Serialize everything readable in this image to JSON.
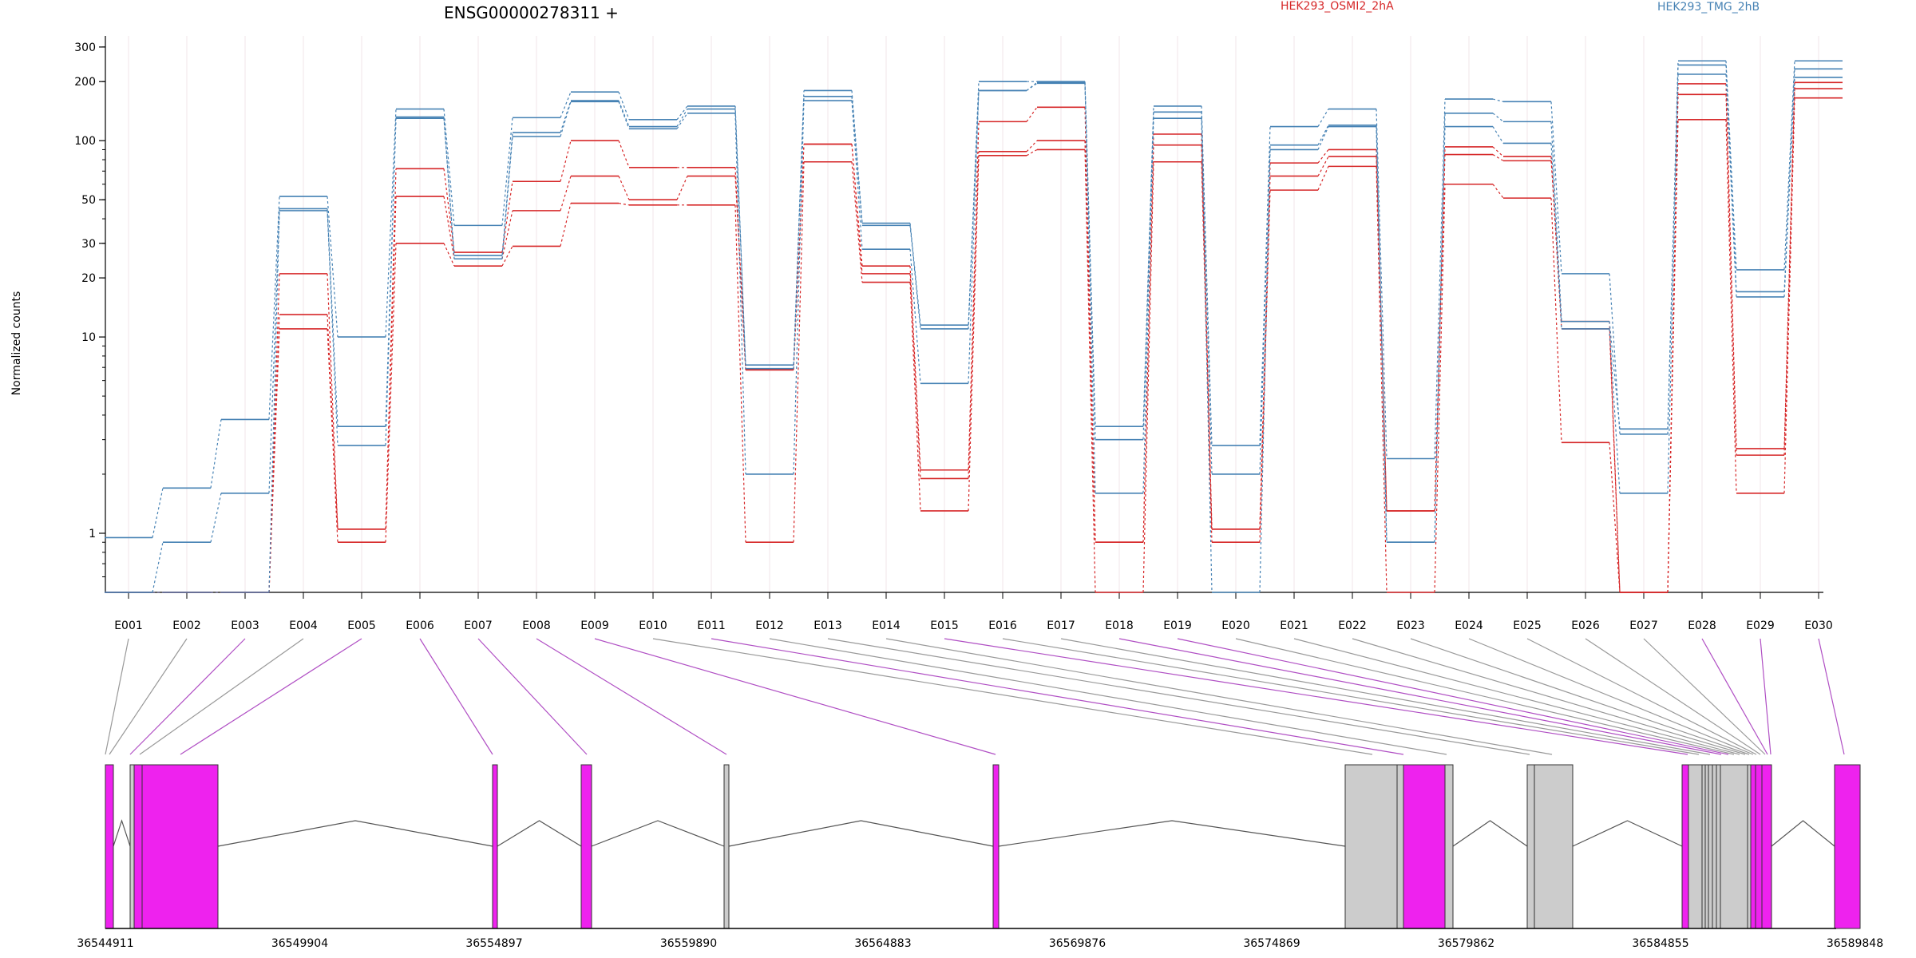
{
  "chart_data": {
    "type": "line",
    "title": "ENSG00000278311 +",
    "ylabel": "Normalized counts",
    "yscale": "log",
    "ylim": [
      0.5,
      320
    ],
    "yticks": [
      {
        "value": 1,
        "label": "1"
      },
      {
        "value": 10,
        "label": "10"
      },
      {
        "value": 20,
        "label": "20"
      },
      {
        "value": 30,
        "label": "30"
      },
      {
        "value": 50,
        "label": "50"
      },
      {
        "value": 100,
        "label": "100"
      },
      {
        "value": 200,
        "label": "200"
      },
      {
        "value": 300,
        "label": "300"
      }
    ],
    "categories": [
      "E001",
      "E002",
      "E003",
      "E004",
      "E005",
      "E006",
      "E007",
      "E008",
      "E009",
      "E010",
      "E011",
      "E012",
      "E013",
      "E014",
      "E015",
      "E016",
      "E017",
      "E018",
      "E019",
      "E020",
      "E021",
      "E022",
      "E023",
      "E024",
      "E025",
      "E026",
      "E027",
      "E028",
      "E029",
      "E030"
    ],
    "series": [
      {
        "name": "HEK293_OSMI2_2hA",
        "color": "#d62728",
        "values": [
          0.5,
          0.5,
          0.5,
          21,
          1.05,
          72,
          27,
          62,
          100,
          73,
          73,
          6.8,
          96,
          23,
          2.1,
          125,
          148,
          0.9,
          108,
          1.05,
          77,
          90,
          1.3,
          93,
          83,
          11,
          0.5,
          195,
          2.7,
          198
        ]
      },
      {
        "name": "HEK293_OSMI2_2hA",
        "color": "#d62728",
        "values": [
          0.5,
          0.5,
          0.5,
          13,
          1.05,
          52,
          25,
          44,
          66,
          50,
          66,
          6.8,
          96,
          21,
          1.9,
          88,
          100,
          0.9,
          95,
          1.05,
          66,
          83,
          1.3,
          85,
          79,
          12,
          0.5,
          172,
          2.5,
          184
        ]
      },
      {
        "name": "HEK293_OSMI2_2hA",
        "color": "#d62728",
        "values": [
          0.5,
          0.5,
          0.5,
          11,
          0.9,
          30,
          23,
          29,
          48,
          47,
          47,
          0.9,
          78,
          19,
          1.3,
          84,
          90,
          0.5,
          78,
          0.9,
          56,
          74,
          0.5,
          60,
          51,
          2.9,
          0.5,
          128,
          1.6,
          165
        ]
      },
      {
        "name": "HEK293_TMG_2hB",
        "color": "#4682b4",
        "values": [
          0.95,
          1.7,
          3.8,
          52,
          10,
          145,
          37,
          131,
          177,
          128,
          150,
          7.2,
          180,
          38,
          11.5,
          200,
          200,
          3.5,
          150,
          2.8,
          118,
          145,
          2.4,
          163,
          158,
          21,
          3.2,
          255,
          22,
          255
        ]
      },
      {
        "name": "HEK293_TMG_2hB",
        "color": "#4682b4",
        "values": [
          0.5,
          0.9,
          1.6,
          45,
          3.5,
          132,
          26,
          110,
          160,
          118,
          145,
          6.9,
          168,
          37,
          11,
          180,
          198,
          3.0,
          140,
          2.0,
          95,
          120,
          0.9,
          138,
          125,
          12,
          3.4,
          243,
          17,
          232
        ]
      },
      {
        "name": "HEK293_TMG_2hB",
        "color": "#4682b4",
        "values": [
          0.5,
          0.5,
          0.5,
          44,
          2.8,
          130,
          25,
          105,
          158,
          115,
          138,
          2.0,
          160,
          28,
          5.8,
          180,
          196,
          1.6,
          130,
          0.5,
          90,
          118,
          0.9,
          118,
          97,
          11,
          1.6,
          218,
          16,
          210
        ]
      }
    ],
    "genomic_ticks": [
      "36544911",
      "36549904",
      "36554897",
      "36559890",
      "36564883",
      "36569876",
      "36574869",
      "36579862",
      "36584855",
      "36589848"
    ],
    "legend": [
      {
        "label": "HEK293_OSMI2_2hA",
        "color": "#d62728"
      },
      {
        "label": "HEK293_TMG_2hB",
        "color": "#4682b4"
      }
    ]
  }
}
